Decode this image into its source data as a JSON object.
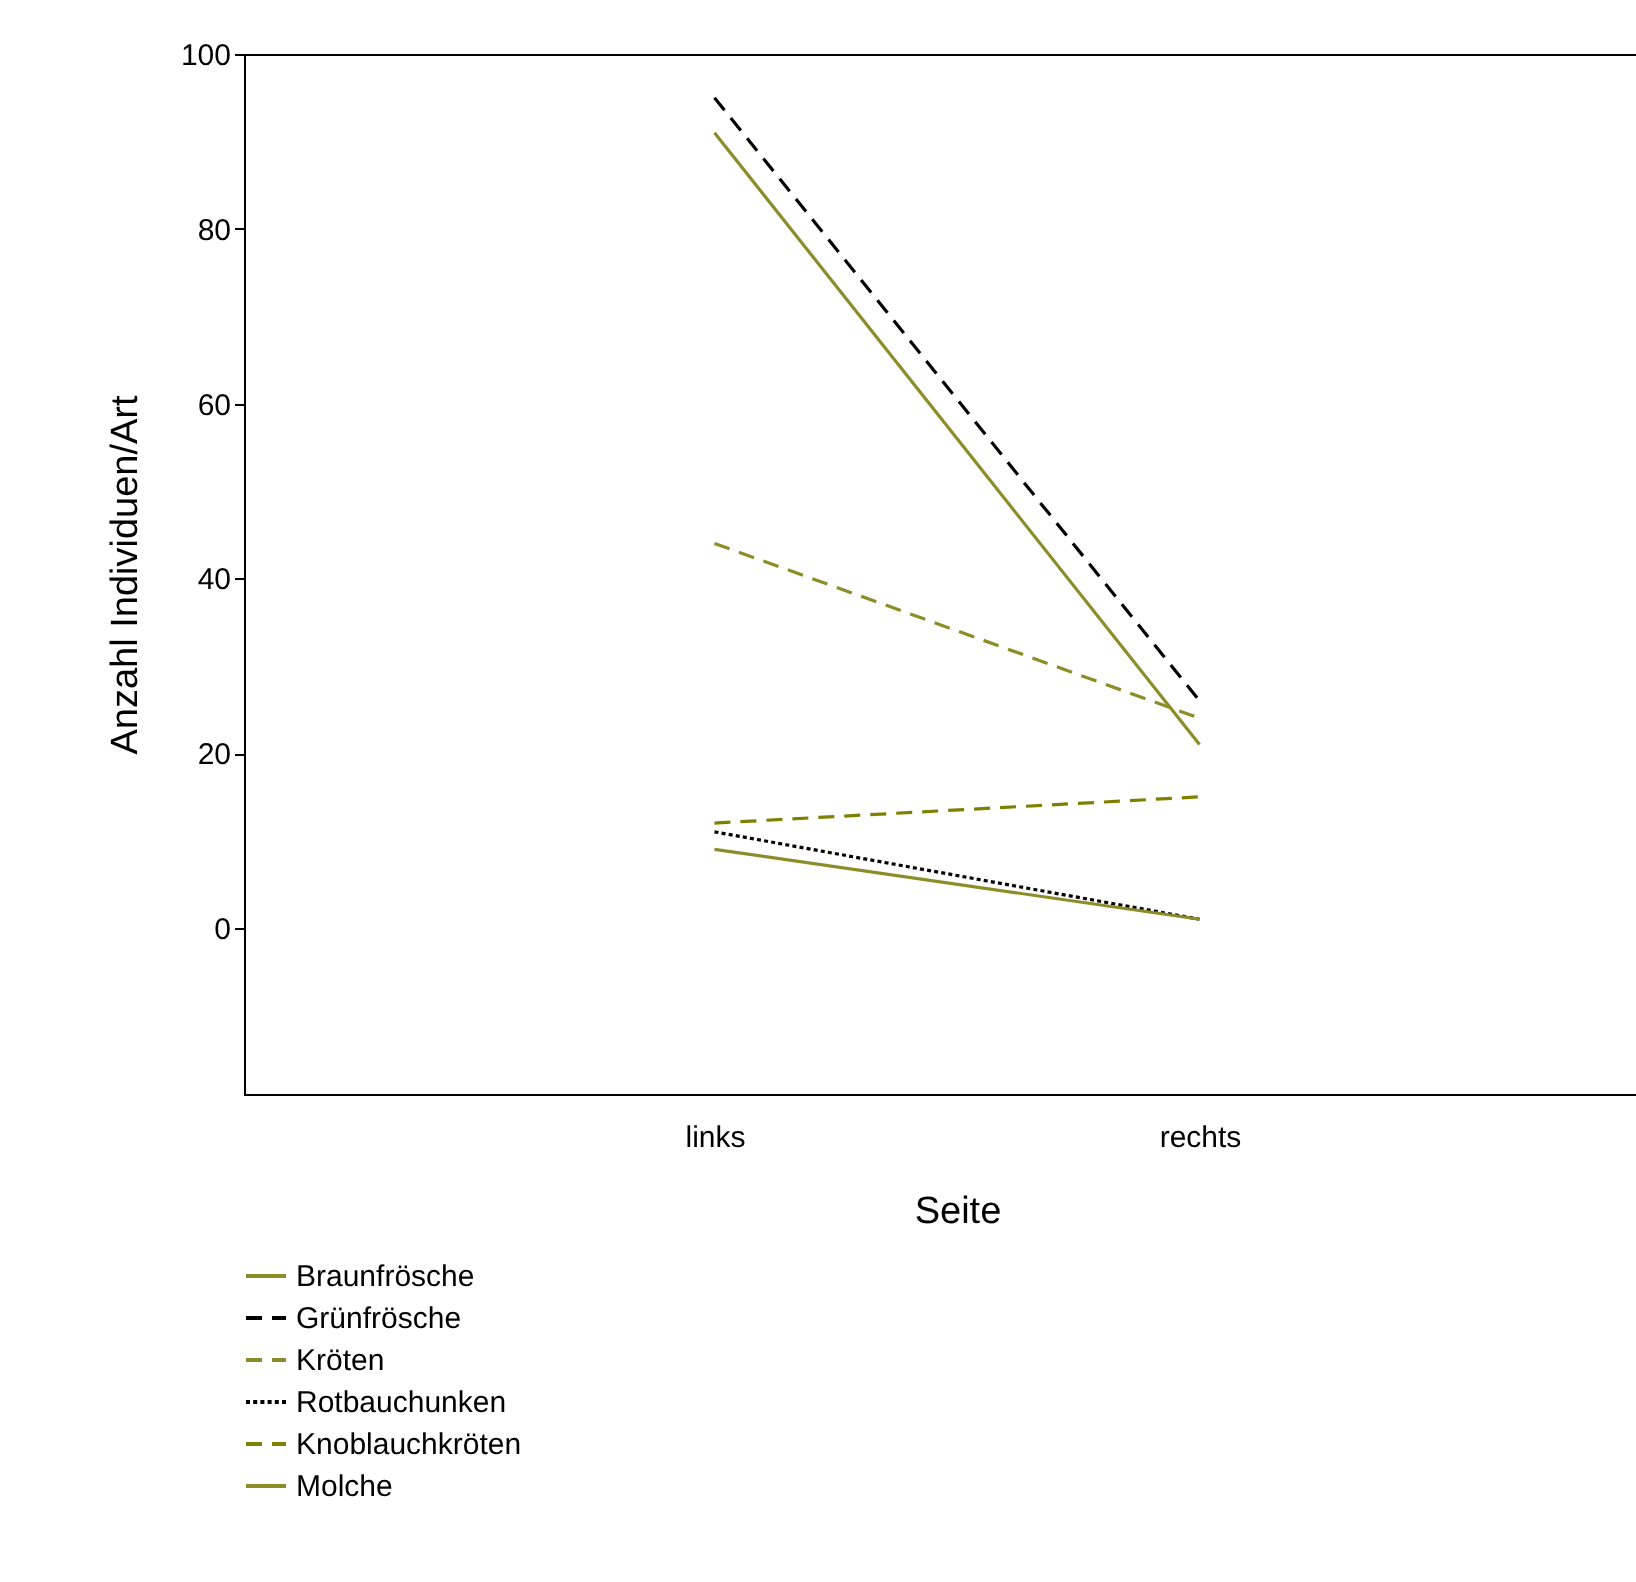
{
  "chart_data": {
    "type": "line",
    "xlabel": "Seite",
    "ylabel": "Anzahl Individuen/Art",
    "categories": [
      "links",
      "rechts"
    ],
    "series": [
      {
        "name": "Braunfrösche",
        "color": "#8c8c28",
        "line_style": "solid",
        "values": [
          91,
          21
        ]
      },
      {
        "name": "Grünfrösche",
        "color": "#000000",
        "line_style": "dashed",
        "values": [
          95,
          26
        ]
      },
      {
        "name": "Kröten",
        "color": "#8c8c28",
        "line_style": "dashed",
        "values": [
          44,
          24
        ]
      },
      {
        "name": "Rotbauchunken",
        "color": "#000000",
        "line_style": "dotted",
        "values": [
          11,
          1
        ]
      },
      {
        "name": "Knoblauchkröten",
        "color": "#808000",
        "line_style": "dashed",
        "values": [
          12,
          15
        ]
      },
      {
        "name": "Molche",
        "color": "#8c8c28",
        "line_style": "solid",
        "values": [
          9,
          1
        ]
      }
    ],
    "ylim": [
      -19,
      100
    ],
    "yticks": [
      0,
      20,
      40,
      60,
      80,
      100
    ],
    "grid": false,
    "marker": "none",
    "legend": "bottom left"
  }
}
